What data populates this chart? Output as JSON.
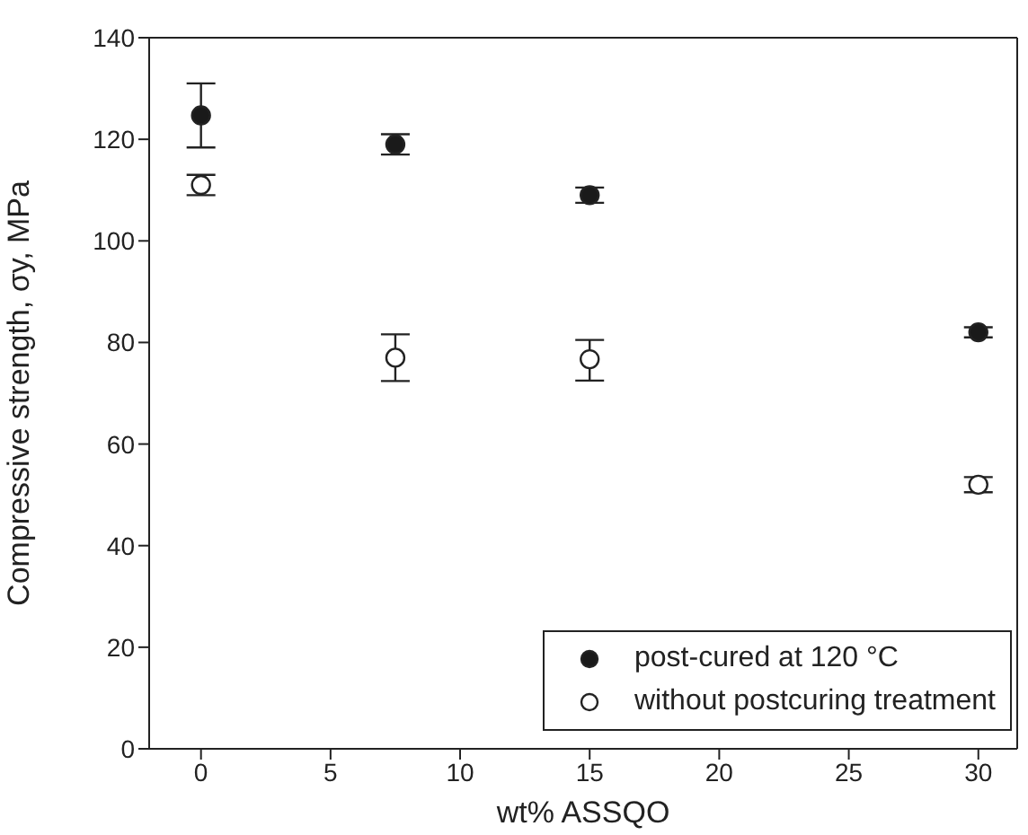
{
  "chart_data": {
    "type": "scatter",
    "xlabel": "wt% ASSQO",
    "ylabel": "Compressive strength, σy, MPa",
    "xlim": [
      -2,
      31.5
    ],
    "xticks": [
      0,
      5,
      10,
      15,
      20,
      25,
      30
    ],
    "ylim": [
      0,
      140
    ],
    "yticks": [
      0,
      20,
      40,
      60,
      80,
      100,
      120,
      140
    ],
    "x": [
      0,
      7.5,
      15,
      30
    ],
    "grid": false,
    "legend": "bottom right",
    "marker": "circle",
    "series": [
      {
        "name": "post-cured at 120 °C",
        "color": "#1a1a1a",
        "values": [
          124.7,
          119,
          109,
          82
        ],
        "errors": [
          [
            118.4,
            131
          ],
          [
            117,
            121
          ],
          [
            107.5,
            110.5
          ],
          [
            81,
            83
          ]
        ]
      },
      {
        "name": "without postcuring treatment",
        "color": "#ffffff",
        "values": [
          111,
          77,
          76.7,
          52
        ],
        "errors": [
          [
            109,
            113
          ],
          [
            72.4,
            81.6
          ],
          [
            72.5,
            80.5
          ],
          [
            50.5,
            53.5
          ]
        ]
      }
    ]
  }
}
